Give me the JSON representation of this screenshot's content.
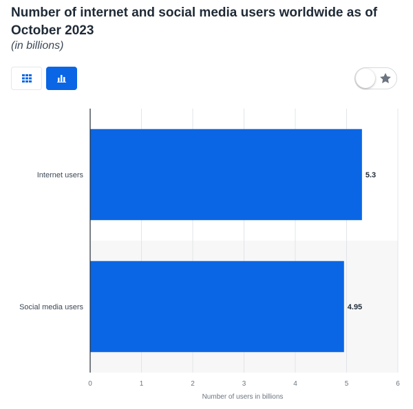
{
  "header": {
    "title": "Number of internet and social media users worldwide as of October 2023",
    "subtitle": "(in billions)"
  },
  "controls": {
    "table_view_icon": "grid-icon",
    "chart_view_icon": "bar-chart-icon",
    "favorite_icon": "star-icon",
    "accent_color": "#0a66e4"
  },
  "chart_data": {
    "type": "bar",
    "orientation": "horizontal",
    "categories": [
      "Internet users",
      "Social media users"
    ],
    "values": [
      5.3,
      4.95
    ],
    "data_labels": [
      "5.3",
      "4.95"
    ],
    "xlabel": "Number of users in billions",
    "ylabel": "",
    "xlim": [
      0,
      6
    ],
    "xticks": [
      0,
      1,
      2,
      3,
      4,
      5,
      6
    ],
    "grid": true,
    "bar_color": "#0a66e4"
  }
}
